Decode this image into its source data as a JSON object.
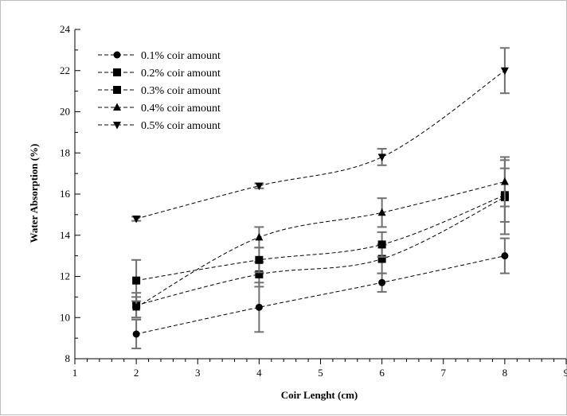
{
  "chart_data": {
    "type": "line",
    "title": "",
    "xlabel": "Coir Lenght (cm)",
    "ylabel": "Water Absorption (%)",
    "xlim": [
      1,
      9
    ],
    "ylim": [
      8,
      24
    ],
    "xticks": [
      1,
      2,
      3,
      4,
      5,
      6,
      7,
      8,
      9
    ],
    "yticks": [
      8,
      10,
      12,
      14,
      16,
      18,
      20,
      22,
      24
    ],
    "x_minor_step": 0.2,
    "y_minor_step": 1,
    "legend_position": "top-left",
    "line_style": "dashed",
    "color": "#000000",
    "grid": false,
    "x": [
      2,
      4,
      6,
      8
    ],
    "series": [
      {
        "name": "0.1% coir amount",
        "marker": "circle",
        "values": [
          9.2,
          10.5,
          11.7,
          13.0
        ],
        "errors": [
          0.7,
          1.2,
          0.45,
          0.85
        ]
      },
      {
        "name": "0.2% coir amount",
        "marker": "square",
        "values": [
          10.6,
          12.1,
          12.85,
          15.85
        ],
        "errors": [
          0.6,
          0.6,
          0.7,
          1.8
        ]
      },
      {
        "name": "0.3% coir amount",
        "marker": "square",
        "values": [
          11.8,
          12.8,
          13.55,
          15.95
        ],
        "errors": [
          1.0,
          0.6,
          0.6,
          1.3
        ]
      },
      {
        "name": "0.4% coir amount",
        "marker": "triangle-up",
        "values": [
          10.5,
          13.9,
          15.1,
          16.6
        ],
        "errors": [
          0.5,
          0.5,
          0.7,
          1.2
        ]
      },
      {
        "name": "0.5% coir amount",
        "marker": "triangle-down",
        "values": [
          14.8,
          16.4,
          17.8,
          22.0
        ],
        "errors": [
          0.1,
          0.12,
          0.4,
          1.1
        ]
      }
    ]
  }
}
